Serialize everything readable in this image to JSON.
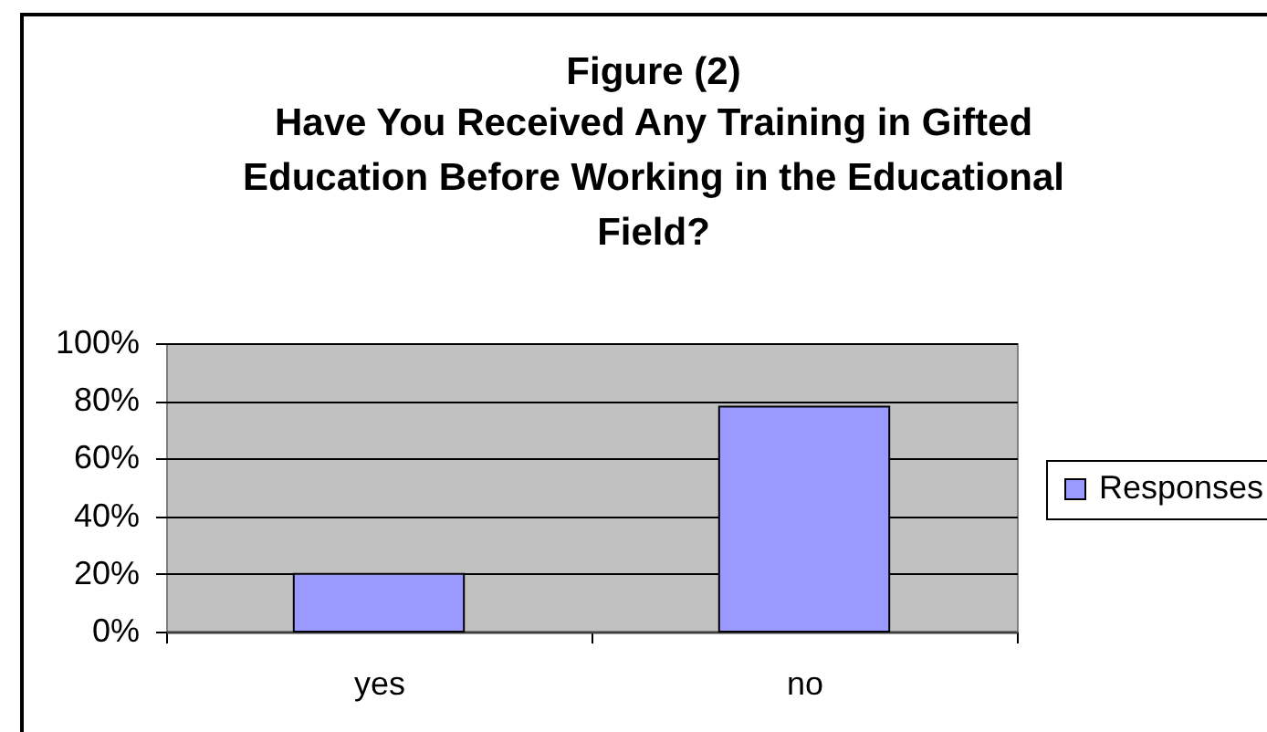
{
  "chart_data": {
    "type": "bar",
    "title": "Figure (2)",
    "subtitle": "Have You Received Any Training in Gifted Education Before Working in the Educational Field?",
    "categories": [
      "yes",
      "no"
    ],
    "series": [
      {
        "name": "Responses",
        "color": "#9999ff",
        "values": [
          20,
          78
        ]
      }
    ],
    "ylim": [
      0,
      100
    ],
    "yticks": [
      {
        "value": 0,
        "label": "0%"
      },
      {
        "value": 20,
        "label": "20%"
      },
      {
        "value": 40,
        "label": "40%"
      },
      {
        "value": 60,
        "label": "60%"
      },
      {
        "value": 80,
        "label": "80%"
      },
      {
        "value": 100,
        "label": "100%"
      }
    ],
    "grid": "y",
    "legend": "right"
  }
}
